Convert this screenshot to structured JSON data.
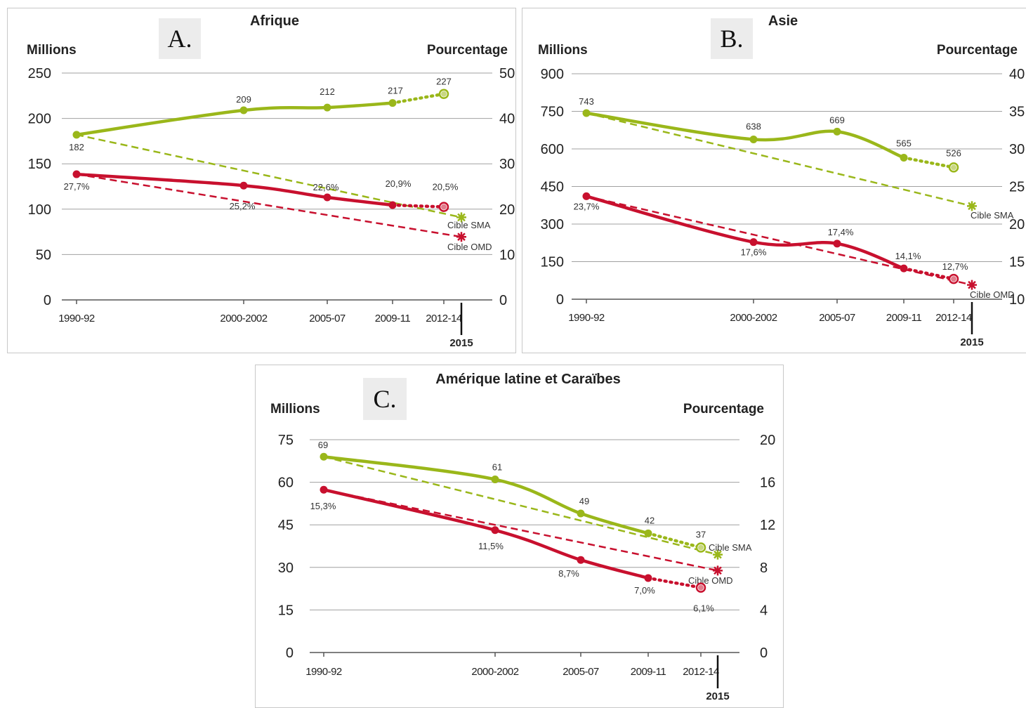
{
  "colors": {
    "green": "#9ab71a",
    "red": "#c8102e",
    "grid": "#a0a0a0",
    "axis": "#555555"
  },
  "chart_data": [
    {
      "type": "line",
      "panel_label": "A.",
      "title": "Afrique",
      "ylabel_left": "Millions",
      "ylabel_right": "Pourcentage",
      "ylim_left": [
        0,
        250
      ],
      "ylim_right": [
        0,
        50
      ],
      "yticks_left": [
        "0",
        "50",
        "100",
        "150",
        "200",
        "250"
      ],
      "yticks_right": [
        "0",
        "10",
        "20",
        "30",
        "40",
        "50"
      ],
      "x_tick_labels": [
        "1990-92",
        "2000-2002",
        "2005-07",
        "2009-11",
        "2012-14"
      ],
      "x_end_label": "2015",
      "grid": true,
      "series": [
        {
          "axis": "left",
          "color_key": "green",
          "points": [
            [
              "1990-92",
              182
            ],
            [
              "2000-2002",
              209
            ],
            [
              "2005-07",
              212
            ],
            [
              "2009-11",
              217
            ],
            [
              "2012-14",
              227
            ]
          ],
          "labels": [
            "182",
            "209",
            "212",
            "217",
            "227"
          ]
        },
        {
          "axis": "right",
          "color_key": "red",
          "points": [
            [
              "1990-92",
              27.7
            ],
            [
              "2000-2002",
              25.2
            ],
            [
              "2005-07",
              22.6
            ],
            [
              "2009-11",
              20.9
            ],
            [
              "2012-14",
              20.5
            ]
          ],
          "labels": [
            "27,7%",
            "25,2%",
            "22,6%",
            "20,9%",
            "20,5%"
          ]
        }
      ],
      "targets": [
        {
          "name": "Cible SMA",
          "color_key": "green",
          "from": [
            "1990-92",
            182
          ],
          "to": [
            "2015",
            91
          ],
          "axis": "left"
        },
        {
          "name": "Cible OMD",
          "color_key": "red",
          "from": [
            "1990-92",
            27.7
          ],
          "to": [
            "2015",
            13.9
          ],
          "axis": "right"
        }
      ]
    },
    {
      "type": "line",
      "panel_label": "B.",
      "title": "Asie",
      "ylabel_left": "Millions",
      "ylabel_right": "Pourcentage",
      "ylim_left": [
        0,
        900
      ],
      "ylim_right": [
        10,
        40
      ],
      "yticks_left": [
        "0",
        "150",
        "300",
        "450",
        "600",
        "750",
        "900"
      ],
      "yticks_right": [
        "10",
        "15",
        "20",
        "25",
        "30",
        "35",
        "40"
      ],
      "x_tick_labels": [
        "1990-92",
        "2000-2002",
        "2005-07",
        "2009-11",
        "2012-14"
      ],
      "x_end_label": "2015",
      "grid": true,
      "series": [
        {
          "axis": "left",
          "color_key": "green",
          "points": [
            [
              "1990-92",
              743
            ],
            [
              "2000-2002",
              638
            ],
            [
              "2005-07",
              669
            ],
            [
              "2009-11",
              565
            ],
            [
              "2012-14",
              526
            ]
          ],
          "labels": [
            "743",
            "638",
            "669",
            "565",
            "526"
          ]
        },
        {
          "axis": "right",
          "color_key": "red",
          "points": [
            [
              "1990-92",
              23.7
            ],
            [
              "2000-2002",
              17.6
            ],
            [
              "2005-07",
              17.4
            ],
            [
              "2009-11",
              14.1
            ],
            [
              "2012-14",
              12.7
            ]
          ],
          "labels": [
            "23,7%",
            "17,6%",
            "17,4%",
            "14,1%",
            "12,7%"
          ]
        }
      ],
      "targets": [
        {
          "name": "Cible SMA",
          "color_key": "green",
          "from": [
            "1990-92",
            743
          ],
          "to": [
            "2015",
            372
          ],
          "axis": "left"
        },
        {
          "name": "Cible OMD",
          "color_key": "red",
          "from": [
            "1990-92",
            23.7
          ],
          "to": [
            "2015",
            11.9
          ],
          "axis": "right"
        }
      ]
    },
    {
      "type": "line",
      "panel_label": "C.",
      "title": "Amérique latine et Caraïbes",
      "ylabel_left": "Millions",
      "ylabel_right": "Pourcentage",
      "ylim_left": [
        0,
        75
      ],
      "ylim_right": [
        0,
        20
      ],
      "yticks_left": [
        "0",
        "15",
        "30",
        "45",
        "60",
        "75"
      ],
      "yticks_right": [
        "0",
        "4",
        "8",
        "12",
        "16",
        "20"
      ],
      "x_tick_labels": [
        "1990-92",
        "2000-2002",
        "2005-07",
        "2009-11",
        "2012-14"
      ],
      "x_end_label": "2015",
      "grid": true,
      "series": [
        {
          "axis": "left",
          "color_key": "green",
          "points": [
            [
              "1990-92",
              69
            ],
            [
              "2000-2002",
              61
            ],
            [
              "2005-07",
              49
            ],
            [
              "2009-11",
              42
            ],
            [
              "2012-14",
              37
            ]
          ],
          "labels": [
            "69",
            "61",
            "49",
            "42",
            "37"
          ]
        },
        {
          "axis": "right",
          "color_key": "red",
          "points": [
            [
              "1990-92",
              15.3
            ],
            [
              "2000-2002",
              11.5
            ],
            [
              "2005-07",
              8.7
            ],
            [
              "2009-11",
              7.0
            ],
            [
              "2012-14",
              6.1
            ]
          ],
          "labels": [
            "15,3%",
            "11,5%",
            "8,7%",
            "7,0%",
            "6,1%"
          ]
        }
      ],
      "targets": [
        {
          "name": "Cible SMA",
          "color_key": "green",
          "from": [
            "1990-92",
            69
          ],
          "to": [
            "2015",
            34.5
          ],
          "axis": "left"
        },
        {
          "name": "Cible OMD",
          "color_key": "red",
          "from": [
            "1990-92",
            15.3
          ],
          "to": [
            "2015",
            7.7
          ],
          "axis": "right"
        }
      ]
    }
  ]
}
